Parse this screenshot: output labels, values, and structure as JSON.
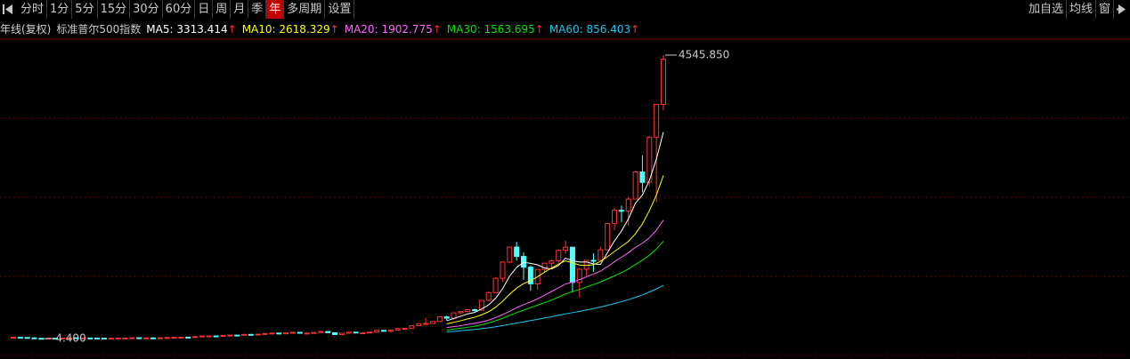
{
  "toolbar": {
    "periods": [
      "分时",
      "1分",
      "5分",
      "15分",
      "30分",
      "60分",
      "日",
      "周",
      "月",
      "季",
      "年",
      "多周期",
      "设置"
    ],
    "active_index": 10,
    "right": [
      "加自选",
      "均线",
      "窗"
    ]
  },
  "chart_data": {
    "type": "candlestick",
    "period": "年线(复权)",
    "instrument": "标准普尔500指数",
    "up_color": "#ff3232",
    "down_color": "#54ffff",
    "max_label": {
      "value": 4545.85,
      "label": "4545.850"
    },
    "min_label": {
      "value": 4.4,
      "label": "4.400"
    },
    "ohlc": [
      [
        17.7,
        24.4,
        16.8,
        24.35
      ],
      [
        24.35,
        31.9,
        17.7,
        21.45
      ],
      [
        21.45,
        25.9,
        14.4,
        15.34
      ],
      [
        15.34,
        18.2,
        7.7,
        8.12
      ],
      [
        8.12,
        9.3,
        4.4,
        6.89
      ],
      [
        6.89,
        12.2,
        5.5,
        10.1
      ],
      [
        10.1,
        11.8,
        8.4,
        9.5
      ],
      [
        9.5,
        13.5,
        8.1,
        13.43
      ],
      [
        13.43,
        17.7,
        13.4,
        17.18
      ],
      [
        17.18,
        18.7,
        10.2,
        10.55
      ],
      [
        10.55,
        13.8,
        8.5,
        13.21
      ],
      [
        13.21,
        13.2,
        10.2,
        12.49
      ],
      [
        12.49,
        12.8,
        8.9,
        10.58
      ],
      [
        10.58,
        10.9,
        8.4,
        8.69
      ],
      [
        8.69,
        9.8,
        7.5,
        9.77
      ],
      [
        9.77,
        12.6,
        9.8,
        11.67
      ],
      [
        11.67,
        13.3,
        11.6,
        13.28
      ],
      [
        13.28,
        17.7,
        13.2,
        17.36
      ],
      [
        17.36,
        19.3,
        14.1,
        15.3
      ],
      [
        15.3,
        16.2,
        13.7,
        15.3
      ],
      [
        15.3,
        17.1,
        13.8,
        15.2
      ],
      [
        15.2,
        16.8,
        13.5,
        16.76
      ],
      [
        16.76,
        20.4,
        16.6,
        20.41
      ],
      [
        20.41,
        23.9,
        20.7,
        23.77
      ],
      [
        23.77,
        26.6,
        23.1,
        26.57
      ],
      [
        26.57,
        26.7,
        22.7,
        24.81
      ],
      [
        24.81,
        36,
        24.8,
        35.98
      ],
      [
        35.98,
        46.4,
        34.6,
        45.48
      ],
      [
        45.48,
        49.7,
        43.1,
        46.67
      ],
      [
        46.67,
        49.1,
        38.9,
        39.99
      ],
      [
        39.99,
        55.2,
        40.3,
        55.21
      ],
      [
        55.21,
        60.7,
        53.6,
        59.89
      ],
      [
        59.89,
        60.4,
        52.3,
        58.11
      ],
      [
        58.11,
        72.6,
        57.6,
        71.55
      ],
      [
        71.55,
        71.1,
        52.3,
        63.1
      ],
      [
        63.1,
        75,
        62.7,
        75.02
      ],
      [
        75.02,
        86.3,
        75.4,
        84.75
      ],
      [
        84.75,
        92.6,
        81.6,
        92.43
      ],
      [
        92.43,
        94.1,
        73.2,
        80.33
      ],
      [
        80.33,
        97.6,
        80.4,
        96.47
      ],
      [
        96.47,
        108.4,
        87.7,
        103.86
      ],
      [
        103.86,
        106.2,
        89.2,
        92.06
      ],
      [
        92.06,
        93.5,
        69.3,
        92.15
      ],
      [
        92.15,
        104.8,
        90.2,
        102.09
      ],
      [
        102.09,
        119.1,
        101.7,
        118.05
      ],
      [
        118.05,
        120.2,
        92.2,
        97.55
      ],
      [
        97.55,
        99.8,
        62.3,
        68.56
      ],
      [
        68.56,
        95.6,
        70,
        90.19
      ],
      [
        90.19,
        107.8,
        90.9,
        107.46
      ],
      [
        107.46,
        107,
        90.7,
        95.1
      ],
      [
        95.1,
        106.9,
        86.9,
        96.11
      ],
      [
        96.11,
        111.3,
        96.1,
        107.94
      ],
      [
        107.94,
        140.5,
        98.2,
        135.76
      ],
      [
        135.76,
        138.1,
        112.8,
        122.55
      ],
      [
        122.55,
        143.7,
        102.2,
        140.64
      ],
      [
        140.64,
        172.7,
        138.3,
        164.93
      ],
      [
        164.93,
        170.4,
        147.8,
        167.24
      ],
      [
        167.24,
        212,
        163.4,
        211.28
      ],
      [
        211.28,
        254,
        203.5,
        242.17
      ],
      [
        242.17,
        336.8,
        216.5,
        247.08
      ],
      [
        247.08,
        283.7,
        242.6,
        277.72
      ],
      [
        277.72,
        360.4,
        273.8,
        353.4
      ],
      [
        353.4,
        369.8,
        295.5,
        330.22
      ],
      [
        330.22,
        418.3,
        309.4,
        417.09
      ],
      [
        417.09,
        442.7,
        394.5,
        435.71
      ],
      [
        435.71,
        471.3,
        429,
        466.45
      ],
      [
        466.45,
        482.9,
        435.9,
        459.27
      ],
      [
        459.27,
        622.9,
        457.2,
        615.93
      ],
      [
        615.93,
        762.1,
        597.3,
        740.74
      ],
      [
        740.74,
        983.8,
        733.5,
        970.43
      ],
      [
        970.43,
        1244.9,
        912.8,
        1229.23
      ],
      [
        1229.23,
        1473.1,
        1205.5,
        1469.25
      ],
      [
        1469.25,
        1553.1,
        1254.1,
        1320.28
      ],
      [
        1320.28,
        1383.4,
        944.8,
        1148.08
      ],
      [
        1148.08,
        1176.9,
        768.6,
        879.82
      ],
      [
        879.82,
        1112.6,
        788.9,
        1111.92
      ],
      [
        1111.92,
        1217.9,
        1060.7,
        1211.92
      ],
      [
        1211.92,
        1275.8,
        1136.2,
        1248.29
      ],
      [
        1248.29,
        1431.8,
        1219.3,
        1418.3
      ],
      [
        1418.3,
        1576.1,
        1363,
        1468.36
      ],
      [
        1468.36,
        1471.8,
        741,
        903.25
      ],
      [
        903.25,
        1130.4,
        666.8,
        1115.1
      ],
      [
        1115.1,
        1262.6,
        1010.9,
        1257.64
      ],
      [
        1257.64,
        1370.6,
        1074.8,
        1257.6
      ],
      [
        1257.6,
        1474.5,
        1258.9,
        1426.19
      ],
      [
        1426.19,
        1849.4,
        1426.2,
        1848.36
      ],
      [
        1848.36,
        2093.6,
        1737.9,
        2058.9
      ],
      [
        2058.9,
        2134.7,
        1867,
        2043.94
      ],
      [
        2043.94,
        2277.5,
        1810.1,
        2238.83
      ],
      [
        2238.83,
        2694.9,
        2245.1,
        2673.61
      ],
      [
        2673.61,
        2940.9,
        2346.6,
        2506.85
      ],
      [
        2506.85,
        3247.9,
        2443.9,
        3230.78
      ],
      [
        3230.78,
        3760.2,
        2191.9,
        3756.07
      ],
      [
        3756.07,
        4545.85,
        3662.7,
        4480
      ]
    ],
    "series": [
      {
        "name": "MA5",
        "color": "#ffffff",
        "trend_mark": "↑",
        "values": [
          null,
          null,
          null,
          null,
          null,
          null,
          null,
          null,
          null,
          null,
          null,
          null,
          null,
          null,
          null,
          null,
          null,
          null,
          null,
          null,
          null,
          null,
          null,
          null,
          null,
          null,
          null,
          null,
          null,
          null,
          null,
          null,
          null,
          null,
          null,
          null,
          null,
          null,
          null,
          null,
          null,
          null,
          null,
          null,
          null,
          null,
          null,
          null,
          null,
          null,
          null,
          null,
          null,
          null,
          null,
          null,
          null,
          null,
          null,
          null,
          null,
          null,
          290,
          325,
          363,
          400,
          422,
          479,
          544,
          650,
          803,
          1005,
          1146,
          1227,
          1209,
          1186,
          1134,
          1120,
          1174,
          1292,
          1250,
          1230,
          1232,
          1200,
          1192,
          1381,
          1570,
          1727,
          1923,
          2173,
          2305,
          2539,
          2881,
          3313.414
        ]
      },
      {
        "name": "MA10",
        "color": "#ffff00",
        "trend_mark": "↑",
        "values": [
          null,
          null,
          null,
          null,
          null,
          null,
          null,
          null,
          null,
          null,
          null,
          null,
          null,
          null,
          null,
          null,
          null,
          null,
          null,
          null,
          null,
          null,
          null,
          null,
          null,
          null,
          null,
          null,
          null,
          null,
          null,
          null,
          null,
          null,
          null,
          null,
          null,
          null,
          null,
          null,
          null,
          null,
          null,
          null,
          null,
          null,
          null,
          null,
          null,
          null,
          null,
          null,
          null,
          null,
          null,
          null,
          null,
          null,
          null,
          null,
          null,
          null,
          240,
          265,
          290,
          320,
          345,
          385,
          435,
          507,
          602,
          714,
          813,
          886,
          930,
          995,
          1070,
          1133,
          1200,
          1250,
          1218,
          1182,
          1176,
          1187,
          1242,
          1316,
          1400,
          1480,
          1562,
          1683,
          1843,
          2055,
          2304,
          2618.329
        ]
      },
      {
        "name": "MA20",
        "color": "#ff66ff",
        "trend_mark": "↑",
        "values": [
          null,
          null,
          null,
          null,
          null,
          null,
          null,
          null,
          null,
          null,
          null,
          null,
          null,
          null,
          null,
          null,
          null,
          null,
          null,
          null,
          null,
          null,
          null,
          null,
          null,
          null,
          null,
          null,
          null,
          null,
          null,
          null,
          null,
          null,
          null,
          null,
          null,
          null,
          null,
          null,
          null,
          null,
          null,
          null,
          null,
          null,
          null,
          null,
          null,
          null,
          null,
          null,
          null,
          null,
          null,
          null,
          null,
          null,
          null,
          null,
          null,
          null,
          180,
          195,
          210,
          230,
          250,
          270,
          300,
          340,
          390,
          440,
          500,
          550,
          590,
          640,
          700,
          759,
          818,
          879,
          910,
          948,
          995,
          1037,
          1086,
          1156,
          1235,
          1307,
          1381,
          1467,
          1531,
          1619,
          1740,
          1902.775
        ]
      },
      {
        "name": "MA30",
        "color": "#00e600",
        "trend_mark": "↑",
        "values": [
          null,
          null,
          null,
          null,
          null,
          null,
          null,
          null,
          null,
          null,
          null,
          null,
          null,
          null,
          null,
          null,
          null,
          null,
          null,
          null,
          null,
          null,
          null,
          null,
          null,
          null,
          null,
          null,
          null,
          null,
          null,
          null,
          null,
          null,
          null,
          null,
          null,
          null,
          null,
          null,
          null,
          null,
          null,
          null,
          null,
          null,
          null,
          null,
          null,
          null,
          null,
          null,
          null,
          null,
          null,
          null,
          null,
          null,
          null,
          null,
          null,
          null,
          140,
          155,
          170,
          185,
          200,
          225,
          255,
          290,
          330,
          375,
          420,
          460,
          500,
          540,
          580,
          620,
          670,
          720,
          760,
          790,
          830,
          870,
          910,
          960,
          1010,
          1060,
          1120,
          1190,
          1260,
          1340,
          1440,
          1563.695
        ]
      },
      {
        "name": "MA60",
        "color": "#19c8f0",
        "trend_mark": "↑",
        "values": [
          null,
          null,
          null,
          null,
          null,
          null,
          null,
          null,
          null,
          null,
          null,
          null,
          null,
          null,
          null,
          null,
          null,
          null,
          null,
          null,
          null,
          null,
          null,
          null,
          null,
          null,
          null,
          null,
          null,
          null,
          null,
          null,
          null,
          null,
          null,
          null,
          null,
          null,
          null,
          null,
          null,
          null,
          null,
          null,
          null,
          null,
          null,
          null,
          null,
          null,
          null,
          null,
          null,
          null,
          null,
          null,
          null,
          null,
          null,
          null,
          null,
          null,
          110,
          120,
          130,
          140,
          150,
          163,
          177,
          193,
          212,
          232,
          252,
          272,
          292,
          312,
          333,
          355,
          378,
          400,
          420,
          440,
          462,
          485,
          510,
          537,
          565,
          595,
          628,
          665,
          705,
          750,
          800,
          856.403
        ]
      }
    ]
  }
}
